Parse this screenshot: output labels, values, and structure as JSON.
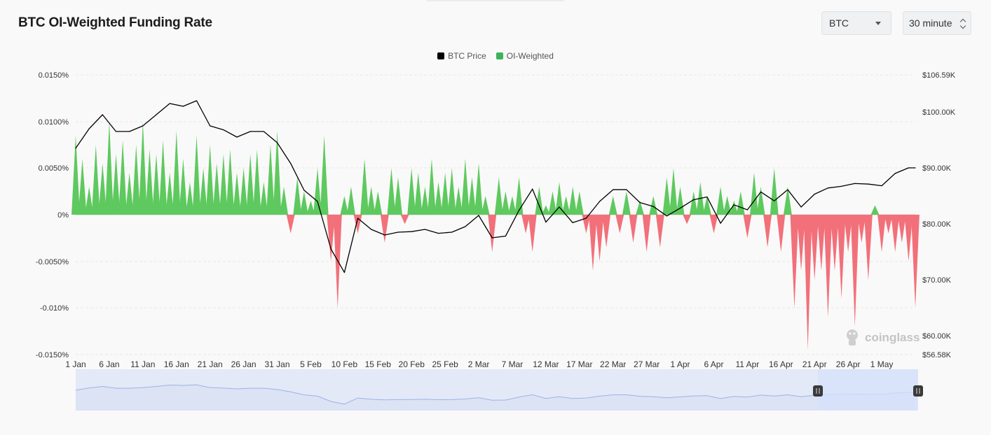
{
  "header": {
    "title": "BTC OI-Weighted Funding Rate",
    "coin_select": "BTC",
    "interval_select": "30 minute"
  },
  "watermark": "coinglass",
  "colors": {
    "positive": "#5ec95e",
    "negative": "#f2707a",
    "price": "#000000",
    "navigator_fill": "#e3e9f7",
    "navigator_line": "#9db3e5",
    "navigator_selection": "#d6e2fb"
  },
  "icons": [
    "caret-down-icon",
    "sort-updown-icon",
    "coinglass-logo-icon",
    "navigator-handle-icon"
  ],
  "chart_data": {
    "type": "area",
    "title": "BTC OI-Weighted Funding Rate",
    "legend": [
      "BTC Price",
      "OI-Weighted"
    ],
    "legend_position": "top-center",
    "grid": true,
    "x_labels": [
      "1 Jan",
      "6 Jan",
      "11 Jan",
      "16 Jan",
      "21 Jan",
      "26 Jan",
      "31 Jan",
      "5 Feb",
      "10 Feb",
      "15 Feb",
      "20 Feb",
      "25 Feb",
      "2 Mar",
      "7 Mar",
      "12 Mar",
      "17 Mar",
      "22 Mar",
      "27 Mar",
      "1 Apr",
      "6 Apr",
      "11 Apr",
      "16 Apr",
      "21 Apr",
      "26 Apr",
      "1 May"
    ],
    "y_left_ticks": [
      "0.0150%",
      "0.0100%",
      "0.0050%",
      "0%",
      "-0.0050%",
      "-0.010%",
      "-0.0150%"
    ],
    "y_left_range": [
      -0.015,
      0.015
    ],
    "y_right_ticks": [
      "$106.59K",
      "$100.00K",
      "$90.00K",
      "$80.00K",
      "$70.00K",
      "$60.00K",
      "$56.58K"
    ],
    "y_right_range": [
      56580,
      106590
    ],
    "funding_rate_series": {
      "name": "OI-Weighted",
      "x_day": [
        0,
        1,
        2,
        3,
        4,
        5,
        6,
        7,
        8,
        9,
        10,
        11,
        12,
        13,
        14,
        15,
        16,
        17,
        18,
        19,
        20,
        21,
        22,
        23,
        24,
        25,
        26,
        27,
        28,
        29,
        30,
        31,
        32,
        33,
        34,
        35,
        36,
        37,
        38,
        39,
        40,
        41,
        42,
        43,
        44,
        45,
        46,
        47,
        48,
        49,
        50,
        51,
        52,
        53,
        54,
        55,
        56,
        57,
        58,
        59,
        60,
        61,
        62,
        63,
        64,
        65,
        66,
        67,
        68,
        69,
        70,
        71,
        72,
        73,
        74,
        75,
        76,
        77,
        78,
        79,
        80,
        81,
        82,
        83,
        84,
        85,
        86,
        87,
        88,
        89,
        90,
        91,
        92,
        93,
        94,
        95,
        96,
        97,
        98,
        99,
        100,
        101,
        102,
        103,
        104,
        105,
        106,
        107,
        108,
        109,
        110,
        111,
        112,
        113,
        114,
        115,
        116,
        117,
        118,
        119,
        120,
        121,
        122,
        123,
        124,
        125
      ],
      "values": [
        0.0085,
        0.006,
        0.003,
        0.0075,
        0.0055,
        0.01,
        0.0065,
        0.008,
        0.0045,
        0.0075,
        0.01,
        0.007,
        0.0065,
        0.008,
        0.0045,
        0.009,
        0.006,
        0.0035,
        0.0085,
        0.005,
        0.0075,
        0.0055,
        0.0065,
        0.007,
        0.0045,
        0.005,
        0.0065,
        0.007,
        0.0035,
        0.0075,
        0.009,
        0.003,
        -0.002,
        0.004,
        0.0025,
        0.0015,
        0.005,
        0.0085,
        -0.005,
        -0.01,
        0.002,
        0.003,
        -0.002,
        0.006,
        0.003,
        0.0025,
        -0.003,
        0.005,
        0.004,
        -0.001,
        0.005,
        0.0045,
        0.003,
        0.006,
        0.0035,
        0.0045,
        0.005,
        0.003,
        0.006,
        0.004,
        0.0055,
        0.002,
        -0.004,
        0.004,
        0.0025,
        0.002,
        0.004,
        -0.002,
        -0.004,
        0.003,
        0.001,
        0.0025,
        0.0035,
        0.002,
        0.003,
        0.0025,
        -0.002,
        -0.006,
        -0.005,
        -0.0035,
        0.002,
        -0.002,
        0.0025,
        -0.003,
        0.0015,
        -0.004,
        0.002,
        -0.0035,
        0.004,
        0.005,
        0.003,
        -0.001,
        0.0025,
        0.0035,
        0.002,
        -0.002,
        0.003,
        0.002,
        0.0015,
        0.0025,
        -0.0025,
        0.0045,
        0.003,
        -0.0035,
        0.005,
        -0.004,
        0.003,
        -0.01,
        -0.006,
        -0.0145,
        -0.007,
        -0.006,
        -0.011,
        -0.006,
        -0.009,
        -0.004,
        -0.012,
        -0.003,
        -0.007,
        0.001,
        -0.004,
        -0.002,
        -0.004,
        -0.003,
        -0.005,
        -0.01
      ]
    },
    "price_series": {
      "name": "BTC Price",
      "x_day": [
        0,
        2,
        4,
        6,
        8,
        10,
        12,
        14,
        16,
        18,
        20,
        22,
        24,
        26,
        28,
        30,
        32,
        34,
        36,
        38,
        40,
        42,
        44,
        46,
        48,
        50,
        52,
        54,
        56,
        58,
        60,
        62,
        64,
        66,
        68,
        70,
        72,
        74,
        76,
        78,
        80,
        82,
        84,
        86,
        88,
        90,
        92,
        94,
        96,
        98,
        100,
        102,
        104,
        106,
        108,
        110,
        112,
        114,
        116,
        118,
        120,
        122,
        124,
        125
      ],
      "values": [
        93500,
        97000,
        99500,
        96500,
        96500,
        97500,
        99500,
        101500,
        101000,
        102000,
        97500,
        96800,
        95500,
        96500,
        96500,
        94500,
        90800,
        86000,
        84000,
        75500,
        71300,
        81000,
        79000,
        78000,
        78500,
        78600,
        79000,
        78300,
        78500,
        79500,
        81500,
        77500,
        77800,
        82400,
        86200,
        80300,
        83000,
        80200,
        81000,
        84000,
        86100,
        86100,
        83800,
        83100,
        81400,
        82800,
        84300,
        84800,
        80100,
        83400,
        82500,
        85700,
        84100,
        86100,
        83000,
        85300,
        86400,
        86700,
        87200,
        87100,
        86800,
        89000,
        90000,
        90000
      ]
    },
    "navigator": {
      "selection": [
        "21 Apr",
        "1 May"
      ]
    }
  }
}
